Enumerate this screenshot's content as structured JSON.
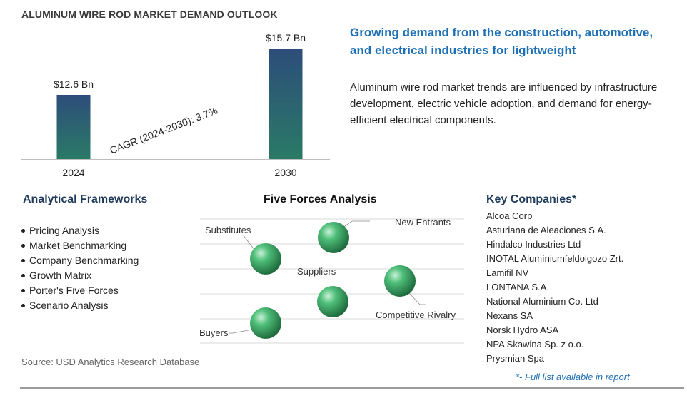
{
  "title": "ALUMINUM WIRE ROD MARKET DEMAND OUTLOOK",
  "headline": "Growing demand from the construction, automotive, and electrical industries for lightweight",
  "description": "Aluminum wire rod market trends are influenced by infrastructure development, electric vehicle adoption, and demand for energy-efficient electrical components.",
  "chart_data": {
    "type": "bar",
    "categories": [
      "2024",
      "2030"
    ],
    "values": [
      12.6,
      15.7
    ],
    "data_labels": [
      "$12.6 Bn",
      "$15.7 Bn"
    ],
    "annotation": "CAGR (2024-2030):  3.7%",
    "ylim": [
      0,
      15.7
    ],
    "grid": false,
    "colors": {
      "bar_top": "#2d4d7a",
      "bar_bottom": "#2a7a66"
    }
  },
  "analytical_frameworks": {
    "title": "Analytical Frameworks",
    "items": [
      "Pricing Analysis",
      "Market Benchmarking",
      "Company Benchmarking",
      "Growth Matrix",
      "Porter's Five Forces",
      "Scenario Analysis"
    ]
  },
  "five_forces": {
    "title": "Five Forces Analysis",
    "labels": {
      "substitutes": "Substitutes",
      "new_entrants": "New Entrants",
      "suppliers": "Suppliers",
      "competitive_rivalry": "Competitive Rivalry",
      "buyers": "Buyers"
    },
    "sphere_color": "#2e9e5a"
  },
  "key_companies": {
    "title": "Key Companies*",
    "items": [
      "Alcoa Corp",
      "Asturiana de Aleaciones S.A.",
      "Hindalco Industries Ltd",
      "INOTAL Alumíniumfeldolgozo Zrt.",
      "Lamifil NV",
      "LONTANA S.A.",
      "National Aluminium Co. Ltd",
      "Nexans SA",
      "Norsk Hydro ASA",
      "NPA Skawina Sp. z o.o.",
      "Prysmian Spa"
    ],
    "note": "*- Full list available in report"
  },
  "source": "Source: USD Analytics Research Database"
}
